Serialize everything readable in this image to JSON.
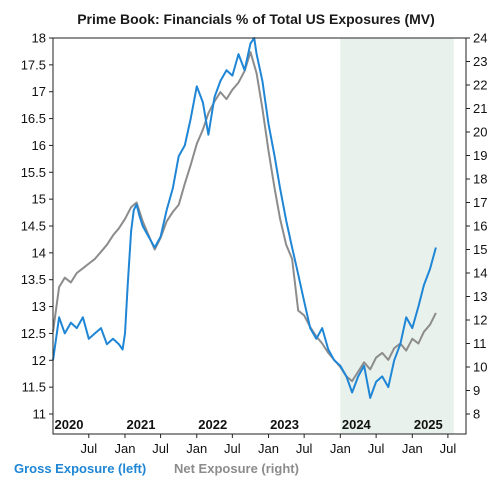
{
  "chart_data": {
    "type": "line",
    "title": "Prime Book: Financials % of Total US Exposures (MV)",
    "x_ticks": [
      "Jul",
      "Jan",
      "Jul",
      "Jan",
      "Jul",
      "Jan",
      "Jul",
      "Jan",
      "Jul",
      "Jan",
      "Jul"
    ],
    "year_labels": [
      "2020",
      "2021",
      "2022",
      "2023",
      "2024",
      "2025"
    ],
    "y_left": {
      "min": 11,
      "max": 18,
      "ticks": [
        "11",
        "11.5",
        "12",
        "12.5",
        "13",
        "13.5",
        "14",
        "14.5",
        "15",
        "15.5",
        "16",
        "16.5",
        "17",
        "17.5",
        "18"
      ]
    },
    "y_right": {
      "min": 8,
      "max": 24,
      "ticks": [
        "8",
        "9",
        "10",
        "11",
        "12",
        "13",
        "14",
        "15",
        "16",
        "17",
        "18",
        "19",
        "20",
        "21",
        "22",
        "23",
        "24"
      ]
    },
    "shaded_region": {
      "from": "2024-01-01",
      "to": "2025-07-31",
      "color": "#e9f1ec"
    },
    "legend": [
      {
        "label": "Gross Exposure (left)",
        "color": "#1f86d6"
      },
      {
        "label": "Net Exposure (right)",
        "color": "#8c8c8c"
      }
    ],
    "series": [
      {
        "name": "Gross Exposure (left)",
        "axis": "left",
        "color": "#1f86d6",
        "points": [
          [
            "2020-01-01",
            12.0
          ],
          [
            "2020-02-01",
            12.8
          ],
          [
            "2020-03-01",
            12.5
          ],
          [
            "2020-04-01",
            12.7
          ],
          [
            "2020-05-01",
            12.6
          ],
          [
            "2020-06-01",
            12.8
          ],
          [
            "2020-07-01",
            12.4
          ],
          [
            "2020-08-01",
            12.5
          ],
          [
            "2020-09-01",
            12.6
          ],
          [
            "2020-10-01",
            12.3
          ],
          [
            "2020-11-01",
            12.4
          ],
          [
            "2020-12-01",
            12.3
          ],
          [
            "2020-12-20",
            12.2
          ],
          [
            "2021-01-01",
            12.5
          ],
          [
            "2021-01-15",
            13.4
          ],
          [
            "2021-02-01",
            14.4
          ],
          [
            "2021-02-15",
            14.8
          ],
          [
            "2021-03-01",
            14.9
          ],
          [
            "2021-03-15",
            14.7
          ],
          [
            "2021-04-01",
            14.5
          ],
          [
            "2021-05-01",
            14.3
          ],
          [
            "2021-06-01",
            14.1
          ],
          [
            "2021-07-01",
            14.3
          ],
          [
            "2021-08-01",
            14.8
          ],
          [
            "2021-09-01",
            15.2
          ],
          [
            "2021-10-01",
            15.8
          ],
          [
            "2021-11-01",
            16.0
          ],
          [
            "2021-12-01",
            16.5
          ],
          [
            "2022-01-01",
            17.1
          ],
          [
            "2022-02-01",
            16.8
          ],
          [
            "2022-03-01",
            16.2
          ],
          [
            "2022-04-01",
            16.9
          ],
          [
            "2022-05-01",
            17.2
          ],
          [
            "2022-06-01",
            17.4
          ],
          [
            "2022-07-01",
            17.3
          ],
          [
            "2022-08-01",
            17.7
          ],
          [
            "2022-09-01",
            17.4
          ],
          [
            "2022-10-01",
            17.9
          ],
          [
            "2022-10-20",
            18.0
          ],
          [
            "2022-11-01",
            17.7
          ],
          [
            "2022-12-01",
            17.2
          ],
          [
            "2023-01-01",
            16.4
          ],
          [
            "2023-02-01",
            15.8
          ],
          [
            "2023-03-01",
            15.2
          ],
          [
            "2023-04-01",
            14.6
          ],
          [
            "2023-05-01",
            14.1
          ],
          [
            "2023-06-01",
            13.6
          ],
          [
            "2023-07-01",
            13.1
          ],
          [
            "2023-08-01",
            12.6
          ],
          [
            "2023-09-01",
            12.4
          ],
          [
            "2023-10-01",
            12.6
          ],
          [
            "2023-11-01",
            12.2
          ],
          [
            "2023-12-01",
            12.0
          ],
          [
            "2024-01-01",
            11.9
          ],
          [
            "2024-02-01",
            11.7
          ],
          [
            "2024-03-01",
            11.4
          ],
          [
            "2024-04-01",
            11.7
          ],
          [
            "2024-05-01",
            11.9
          ],
          [
            "2024-06-01",
            11.3
          ],
          [
            "2024-07-01",
            11.6
          ],
          [
            "2024-08-01",
            11.7
          ],
          [
            "2024-09-01",
            11.5
          ],
          [
            "2024-10-01",
            12.0
          ],
          [
            "2024-11-01",
            12.3
          ],
          [
            "2024-12-01",
            12.8
          ],
          [
            "2025-01-01",
            12.6
          ],
          [
            "2025-02-01",
            13.0
          ],
          [
            "2025-03-01",
            13.4
          ],
          [
            "2025-04-01",
            13.7
          ],
          [
            "2025-05-01",
            14.1
          ]
        ]
      },
      {
        "name": "Net Exposure (right)",
        "axis": "right",
        "color": "#8c8c8c",
        "points": [
          [
            "2020-01-01",
            11.5
          ],
          [
            "2020-02-01",
            13.4
          ],
          [
            "2020-03-01",
            13.8
          ],
          [
            "2020-04-01",
            13.6
          ],
          [
            "2020-05-01",
            14.0
          ],
          [
            "2020-06-01",
            14.2
          ],
          [
            "2020-07-01",
            14.4
          ],
          [
            "2020-08-01",
            14.6
          ],
          [
            "2020-09-01",
            14.9
          ],
          [
            "2020-10-01",
            15.2
          ],
          [
            "2020-11-01",
            15.6
          ],
          [
            "2020-12-01",
            15.9
          ],
          [
            "2021-01-01",
            16.3
          ],
          [
            "2021-02-01",
            16.8
          ],
          [
            "2021-03-01",
            17.0
          ],
          [
            "2021-04-01",
            16.2
          ],
          [
            "2021-05-01",
            15.6
          ],
          [
            "2021-06-01",
            15.0
          ],
          [
            "2021-07-01",
            15.5
          ],
          [
            "2021-08-01",
            16.2
          ],
          [
            "2021-09-01",
            16.6
          ],
          [
            "2021-10-01",
            16.9
          ],
          [
            "2021-11-01",
            17.8
          ],
          [
            "2021-12-01",
            18.6
          ],
          [
            "2022-01-01",
            19.5
          ],
          [
            "2022-02-01",
            20.1
          ],
          [
            "2022-03-01",
            20.8
          ],
          [
            "2022-04-01",
            21.3
          ],
          [
            "2022-05-01",
            21.7
          ],
          [
            "2022-06-01",
            21.4
          ],
          [
            "2022-07-01",
            21.8
          ],
          [
            "2022-08-01",
            22.1
          ],
          [
            "2022-09-01",
            22.6
          ],
          [
            "2022-10-01",
            23.4
          ],
          [
            "2022-11-01",
            22.5
          ],
          [
            "2022-12-01",
            21.0
          ],
          [
            "2023-01-01",
            19.2
          ],
          [
            "2023-02-01",
            17.6
          ],
          [
            "2023-03-01",
            16.3
          ],
          [
            "2023-04-01",
            15.2
          ],
          [
            "2023-05-01",
            14.6
          ],
          [
            "2023-06-01",
            12.4
          ],
          [
            "2023-07-01",
            12.2
          ],
          [
            "2023-08-01",
            11.7
          ],
          [
            "2023-09-01",
            11.3
          ],
          [
            "2023-10-01",
            11.0
          ],
          [
            "2023-11-01",
            10.6
          ],
          [
            "2023-12-01",
            10.3
          ],
          [
            "2024-01-01",
            10.0
          ],
          [
            "2024-02-01",
            9.6
          ],
          [
            "2024-03-01",
            9.4
          ],
          [
            "2024-04-01",
            9.8
          ],
          [
            "2024-05-01",
            10.2
          ],
          [
            "2024-06-01",
            9.9
          ],
          [
            "2024-07-01",
            10.4
          ],
          [
            "2024-08-01",
            10.6
          ],
          [
            "2024-09-01",
            10.3
          ],
          [
            "2024-10-01",
            10.8
          ],
          [
            "2024-11-01",
            11.0
          ],
          [
            "2024-12-01",
            10.7
          ],
          [
            "2025-01-01",
            11.2
          ],
          [
            "2025-02-01",
            11.0
          ],
          [
            "2025-03-01",
            11.5
          ],
          [
            "2025-04-01",
            11.8
          ],
          [
            "2025-05-01",
            12.3
          ]
        ]
      }
    ]
  }
}
